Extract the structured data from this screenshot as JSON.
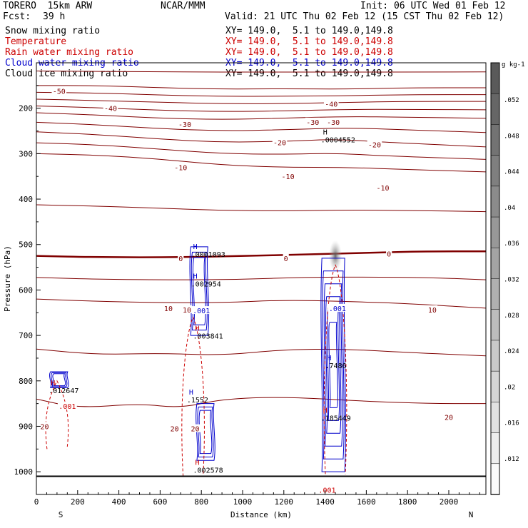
{
  "header": {
    "model": "TORERO  15km ARW",
    "center": "NCAR/MMM",
    "init": "Init: 06 UTC Wed 01 Feb 12",
    "fcst_label": "Fcst:",
    "fcst_value": "39 h",
    "valid": "Valid: 21 UTC Thu 02 Feb 12 (15 CST Thu 02 Feb 12)"
  },
  "legend": [
    {
      "name": "Snow mixing ratio",
      "xy": "XY= 149.0,  5.1 to 149.0,149.8",
      "color": "#000000"
    },
    {
      "name": "Temperature",
      "xy": "XY= 149.0,  5.1 to 149.0,149.8",
      "color": "#cc0000"
    },
    {
      "name": "Rain water mixing ratio",
      "xy": "XY= 149.0,  5.1 to 149.0,149.8",
      "color": "#cc0000"
    },
    {
      "name": "Cloud water mixing ratio",
      "xy": "XY= 149.0,  5.1 to 149.0,149.8",
      "color": "#0000cc"
    },
    {
      "name": "Cloud ice mixing ratio",
      "xy": "XY= 149.0,  5.1 to 149.0,149.8",
      "color": "#000000"
    }
  ],
  "chart_data": {
    "type": "contour",
    "xlabel": "Distance (km)",
    "ylabel": "Pressure (hPa)",
    "xlim": [
      0,
      2180
    ],
    "ylim": [
      1050,
      100
    ],
    "x_ticks": [
      0,
      200,
      400,
      600,
      800,
      1000,
      1200,
      1400,
      1600,
      1800,
      2000
    ],
    "y_ticks": [
      200,
      300,
      400,
      500,
      600,
      700,
      800,
      900,
      1000
    ],
    "x_endpoints": {
      "left": "S",
      "right": "N"
    },
    "colorbar": {
      "unit": "g kg-1",
      "labels": [
        ".052",
        ".048",
        ".044",
        ".04",
        ".036",
        ".032",
        ".028",
        ".024",
        ".02",
        ".016",
        ".012"
      ]
    },
    "temperature_contours": [
      {
        "level": -50,
        "points": [
          [
            0,
            150
          ],
          [
            300,
            150
          ],
          [
            600,
            155
          ],
          [
            900,
            158
          ],
          [
            1200,
            157
          ],
          [
            1500,
            158
          ],
          [
            1800,
            155
          ],
          [
            2180,
            155
          ]
        ]
      },
      {
        "level": -40,
        "points": [
          [
            0,
            180
          ],
          [
            300,
            183
          ],
          [
            600,
            187
          ],
          [
            900,
            190
          ],
          [
            1200,
            190
          ],
          [
            1500,
            187
          ],
          [
            1800,
            185
          ],
          [
            2180,
            185
          ]
        ]
      },
      {
        "level": -30,
        "points": [
          [
            0,
            210
          ],
          [
            300,
            215
          ],
          [
            600,
            222
          ],
          [
            900,
            225
          ],
          [
            1200,
            222
          ],
          [
            1500,
            218
          ],
          [
            1800,
            220
          ],
          [
            2180,
            222
          ]
        ]
      },
      {
        "level": -20,
        "points": [
          [
            0,
            252
          ],
          [
            300,
            258
          ],
          [
            600,
            268
          ],
          [
            900,
            275
          ],
          [
            1200,
            273
          ],
          [
            1450,
            268
          ],
          [
            1700,
            275
          ],
          [
            2180,
            285
          ]
        ]
      },
      {
        "level": -10,
        "points": [
          [
            0,
            300
          ],
          [
            300,
            303
          ],
          [
            600,
            312
          ],
          [
            900,
            325
          ],
          [
            1200,
            330
          ],
          [
            1500,
            330
          ],
          [
            1800,
            335
          ],
          [
            2180,
            340
          ]
        ]
      },
      {
        "level": 0,
        "points": [
          [
            0,
            525
          ],
          [
            300,
            528
          ],
          [
            700,
            528
          ],
          [
            1000,
            525
          ],
          [
            1300,
            522
          ],
          [
            1600,
            518
          ],
          [
            1900,
            515
          ],
          [
            2180,
            515
          ]
        ]
      },
      {
        "level": 10,
        "points": [
          [
            0,
            620
          ],
          [
            300,
            625
          ],
          [
            600,
            628
          ],
          [
            900,
            628
          ],
          [
            1200,
            622
          ],
          [
            1500,
            625
          ],
          [
            1800,
            630
          ],
          [
            2180,
            640
          ]
        ]
      },
      {
        "level": 20,
        "points": [
          [
            0,
            840
          ],
          [
            200,
            860
          ],
          [
            500,
            850
          ],
          [
            700,
            860
          ],
          [
            900,
            840
          ],
          [
            1200,
            835
          ],
          [
            1600,
            845
          ],
          [
            1900,
            850
          ],
          [
            2180,
            850
          ]
        ]
      }
    ],
    "maxima_labels": [
      {
        "text": "H",
        "value": ".0004552",
        "x": 1390,
        "p": 258
      },
      {
        "text": "H",
        "value": ".0001093",
        "x": 760,
        "p": 510
      },
      {
        "text": "H",
        "value": ".002954",
        "x": 760,
        "p": 575
      },
      {
        "text": "H",
        "value": ".003841",
        "x": 770,
        "p": 690
      },
      {
        "text": "H",
        "value": ".012647",
        "x": 70,
        "p": 810
      },
      {
        "text": "H",
        "value": ".1552",
        "x": 740,
        "p": 830
      },
      {
        "text": "H",
        "value": ".7486",
        "x": 1410,
        "p": 755
      },
      {
        "text": "H",
        "value": ".185449",
        "x": 1390,
        "p": 870
      },
      {
        "text": "H",
        "value": ".002578",
        "x": 770,
        "p": 985
      }
    ],
    "contour_labels": [
      {
        "text": "-50",
        "x": 110,
        "p": 162,
        "color": "#800000"
      },
      {
        "text": "-40",
        "x": 360,
        "p": 200,
        "color": "#800000"
      },
      {
        "text": "-40",
        "x": 1430,
        "p": 190,
        "color": "#800000"
      },
      {
        "text": "-30",
        "x": 720,
        "p": 235,
        "color": "#800000"
      },
      {
        "text": "-30",
        "x": 1340,
        "p": 230,
        "color": "#800000"
      },
      {
        "text": "-30",
        "x": 1440,
        "p": 230,
        "color": "#800000"
      },
      {
        "text": "-20",
        "x": 1180,
        "p": 275,
        "color": "#800000"
      },
      {
        "text": "-20",
        "x": 1640,
        "p": 280,
        "color": "#800000"
      },
      {
        "text": "-10",
        "x": 700,
        "p": 330,
        "color": "#800000"
      },
      {
        "text": "-10",
        "x": 1220,
        "p": 350,
        "color": "#800000"
      },
      {
        "text": "-10",
        "x": 1680,
        "p": 375,
        "color": "#800000"
      },
      {
        "text": "0",
        "x": 700,
        "p": 530,
        "color": "#800000"
      },
      {
        "text": "0",
        "x": 1210,
        "p": 530,
        "color": "#800000"
      },
      {
        "text": "0",
        "x": 1710,
        "p": 520,
        "color": "#800000"
      },
      {
        "text": "10",
        "x": 640,
        "p": 640,
        "color": "#800000"
      },
      {
        "text": "10",
        "x": 730,
        "p": 643,
        "color": "#800000"
      },
      {
        "text": "10",
        "x": 1920,
        "p": 643,
        "color": "#800000"
      },
      {
        "text": "20",
        "x": 40,
        "p": 900,
        "color": "#800000"
      },
      {
        "text": "20",
        "x": 670,
        "p": 905,
        "color": "#800000"
      },
      {
        "text": "20",
        "x": 770,
        "p": 905,
        "color": "#800000"
      },
      {
        "text": "20",
        "x": 2000,
        "p": 880,
        "color": "#800000"
      },
      {
        "text": ".001",
        "x": 150,
        "p": 855,
        "color": "#cc0000"
      },
      {
        "text": ".001",
        "x": 800,
        "p": 645,
        "color": "#0000cc"
      },
      {
        "text": ".001",
        "x": 1460,
        "p": 640,
        "color": "#0000cc"
      },
      {
        "text": ".001",
        "x": 1410,
        "p": 1040,
        "color": "#cc0000"
      }
    ],
    "cloud_water_cells": [
      {
        "x": 790,
        "p_top": 505,
        "p_bot": 700,
        "color": "#0000cc"
      },
      {
        "x": 1440,
        "p_top": 530,
        "p_bot": 1000,
        "color": "#0000cc"
      },
      {
        "x": 820,
        "p_top": 850,
        "p_bot": 975,
        "color": "#0000cc"
      },
      {
        "x": 110,
        "p_top": 780,
        "p_bot": 815,
        "color": "#0000cc"
      }
    ],
    "rain_contours": [
      {
        "x": 760,
        "p_top": 660,
        "p_bot": 1010,
        "color": "#cc0000"
      },
      {
        "x": 1450,
        "p_top": 545,
        "p_bot": 1005,
        "color": "#cc0000"
      },
      {
        "x": 100,
        "p_top": 800,
        "p_bot": 950,
        "color": "#cc0000"
      }
    ]
  }
}
